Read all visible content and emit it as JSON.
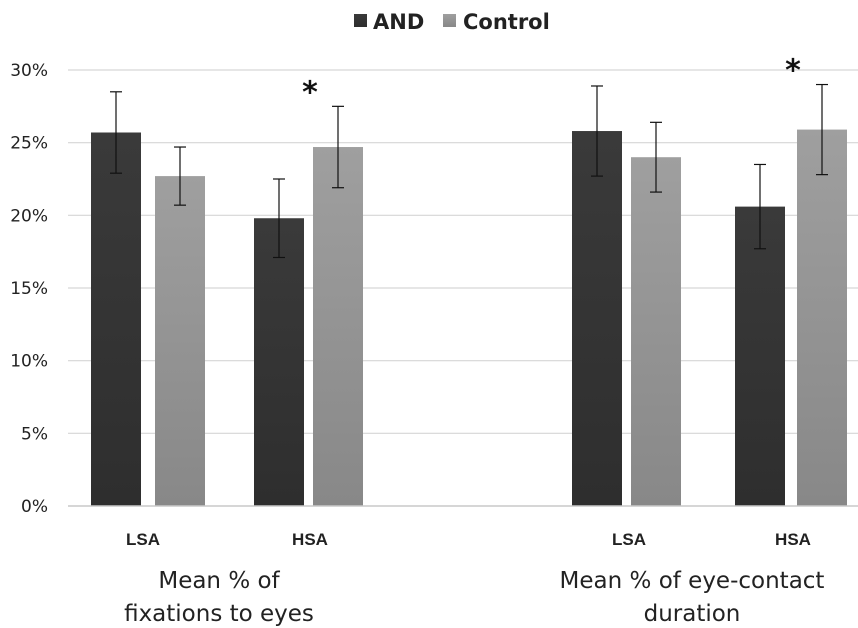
{
  "chart_data": {
    "type": "bar",
    "title": "",
    "xlabel": "",
    "ylabel": "",
    "ylim": [
      0,
      30
    ],
    "y_ticks": [
      0,
      5,
      10,
      15,
      20,
      25,
      30
    ],
    "y_tick_labels": [
      "0%",
      "5%",
      "10%",
      "15%",
      "20%",
      "25%",
      "30%"
    ],
    "grid": true,
    "legend": "top-center",
    "groups": [
      {
        "label_lines": [
          "Mean % of",
          "fixations to eyes"
        ],
        "categories": [
          "LSA",
          "HSA"
        ],
        "significance": [
          "",
          "*"
        ]
      },
      {
        "label_lines": [
          "Mean % of eye-contact",
          "duration"
        ],
        "categories": [
          "LSA",
          "HSA"
        ],
        "significance": [
          "",
          "*"
        ]
      }
    ],
    "series": [
      {
        "name": "AND",
        "color": "#3c3c3c",
        "values": [
          25.7,
          19.8,
          25.8,
          20.6
        ],
        "error": [
          2.8,
          2.7,
          3.1,
          2.9
        ]
      },
      {
        "name": "Control",
        "color": "#9a9a9a",
        "values": [
          22.7,
          24.7,
          24.0,
          25.9
        ],
        "error": [
          2.0,
          2.8,
          2.4,
          3.1
        ]
      }
    ]
  }
}
